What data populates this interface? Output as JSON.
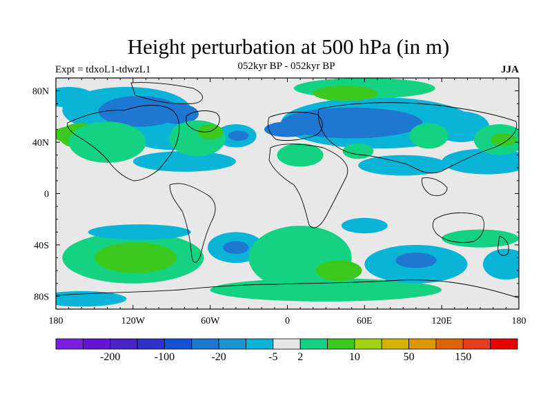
{
  "title": "Height perturbation at 500 hPa (in m)",
  "subtitle_left": "Expt = tdxoL1-tdwzL1",
  "subtitle_center": "052kyr BP - 052kyr BP",
  "subtitle_right": "JJA",
  "colors": {
    "background": "#e8e8e8",
    "frame": "#000000",
    "coast": "#000000"
  },
  "chart_data": {
    "type": "heatmap",
    "title": "Height perturbation at 500 hPa (in m)",
    "x_range": [
      -180,
      180
    ],
    "y_range": [
      -90,
      90
    ],
    "x_ticks": [
      {
        "value": -180,
        "label": "180"
      },
      {
        "value": -120,
        "label": "120W"
      },
      {
        "value": -60,
        "label": "60W"
      },
      {
        "value": 0,
        "label": "0"
      },
      {
        "value": 60,
        "label": "60E"
      },
      {
        "value": 120,
        "label": "120E"
      },
      {
        "value": 180,
        "label": "180"
      }
    ],
    "y_ticks": [
      {
        "value": 80,
        "label": "80N"
      },
      {
        "value": 40,
        "label": "40N"
      },
      {
        "value": 0,
        "label": "0"
      },
      {
        "value": -40,
        "label": "40S"
      },
      {
        "value": -80,
        "label": "80S"
      }
    ],
    "colorbar": {
      "colors": [
        "#7a1ee0",
        "#6414d2",
        "#4a23c8",
        "#2d32cd",
        "#1450d2",
        "#1e78d2",
        "#1996d2",
        "#0ab4d7",
        "#e6e6e6",
        "#14d282",
        "#3cc81e",
        "#a0d214",
        "#d2b400",
        "#dc9600",
        "#dc6400",
        "#e63c1e",
        "#e60000"
      ],
      "label_items": [
        {
          "index": 2,
          "label": "-200"
        },
        {
          "index": 4,
          "label": "-100"
        },
        {
          "index": 6,
          "label": "-20"
        },
        {
          "index": 8,
          "label": "-5"
        },
        {
          "index": 9,
          "label": "2"
        },
        {
          "index": 11,
          "label": "10"
        },
        {
          "index": 13,
          "label": "50"
        },
        {
          "index": 15,
          "label": "150"
        }
      ]
    },
    "field_regions": [
      {
        "level": -5,
        "lon": -125,
        "lat": 65,
        "rlon": 50,
        "rlat": 18
      },
      {
        "level": -20,
        "lon": -115,
        "lat": 64,
        "rlon": 32,
        "rlat": 12
      },
      {
        "level": -20,
        "lon": -85,
        "lat": 62,
        "rlon": 16,
        "rlat": 8
      },
      {
        "level": -5,
        "lon": -90,
        "lat": 44,
        "rlon": 30,
        "rlat": 10
      },
      {
        "level": -5,
        "lon": -40,
        "lat": 45,
        "rlon": 16,
        "rlat": 9
      },
      {
        "level": -20,
        "lon": -38,
        "lat": 45,
        "rlon": 8,
        "rlat": 4
      },
      {
        "level": -5,
        "lon": 70,
        "lat": 55,
        "rlon": 75,
        "rlat": 20
      },
      {
        "level": -20,
        "lon": 50,
        "lat": 55,
        "rlon": 55,
        "rlat": 12
      },
      {
        "level": -20,
        "lon": 0,
        "lat": 50,
        "rlon": 18,
        "rlat": 6
      },
      {
        "level": -5,
        "lon": 135,
        "lat": 52,
        "rlon": 22,
        "rlat": 12
      },
      {
        "level": -5,
        "lon": 155,
        "lat": 25,
        "rlon": 35,
        "rlat": 10
      },
      {
        "level": -5,
        "lon": 90,
        "lat": 22,
        "rlon": 35,
        "rlat": 8
      },
      {
        "level": -5,
        "lon": -170,
        "lat": 75,
        "rlon": 20,
        "rlat": 8
      },
      {
        "level": -5,
        "lon": -80,
        "lat": 25,
        "rlon": 40,
        "rlat": 8
      },
      {
        "level": 10,
        "lon": -160,
        "lat": 45,
        "rlon": 18,
        "rlat": 10
      },
      {
        "level": 10,
        "lon": -170,
        "lat": 46,
        "rlon": 12,
        "rlat": 6
      },
      {
        "level": 2,
        "lon": -140,
        "lat": 40,
        "rlon": 30,
        "rlat": 16
      },
      {
        "level": 2,
        "lon": -70,
        "lat": 43,
        "rlon": 22,
        "rlat": 14
      },
      {
        "level": 10,
        "lon": -60,
        "lat": 48,
        "rlon": 10,
        "rlat": 6
      },
      {
        "level": 2,
        "lon": 10,
        "lat": 30,
        "rlon": 18,
        "rlat": 9
      },
      {
        "level": 2,
        "lon": 55,
        "lat": 33,
        "rlon": 12,
        "rlat": 6
      },
      {
        "level": 2,
        "lon": 60,
        "lat": 82,
        "rlon": 55,
        "rlat": 8
      },
      {
        "level": 10,
        "lon": 45,
        "lat": 78,
        "rlon": 25,
        "rlat": 6
      },
      {
        "level": 2,
        "lon": 110,
        "lat": 45,
        "rlon": 15,
        "rlat": 10
      },
      {
        "level": 2,
        "lon": 165,
        "lat": 42,
        "rlon": 20,
        "rlat": 12
      },
      {
        "level": 10,
        "lon": 168,
        "lat": 42,
        "rlon": 10,
        "rlat": 5
      },
      {
        "level": 2,
        "lon": -120,
        "lat": -50,
        "rlon": 55,
        "rlat": 20
      },
      {
        "level": 10,
        "lon": -118,
        "lat": -50,
        "rlon": 32,
        "rlat": 12
      },
      {
        "level": -5,
        "lon": -115,
        "lat": -30,
        "rlon": 40,
        "rlat": 6
      },
      {
        "level": -5,
        "lon": -40,
        "lat": -42,
        "rlon": 22,
        "rlat": 12
      },
      {
        "level": -20,
        "lon": -40,
        "lat": -42,
        "rlon": 10,
        "rlat": 5
      },
      {
        "level": 2,
        "lon": 10,
        "lat": -50,
        "rlon": 40,
        "rlat": 25
      },
      {
        "level": 2,
        "lon": 30,
        "lat": -75,
        "rlon": 90,
        "rlat": 9
      },
      {
        "level": 10,
        "lon": 40,
        "lat": -60,
        "rlon": 18,
        "rlat": 8
      },
      {
        "level": -5,
        "lon": 100,
        "lat": -55,
        "rlon": 40,
        "rlat": 15
      },
      {
        "level": -20,
        "lon": 100,
        "lat": -52,
        "rlon": 16,
        "rlat": 6
      },
      {
        "level": -5,
        "lon": 60,
        "lat": -25,
        "rlon": 18,
        "rlat": 6
      },
      {
        "level": -5,
        "lon": 170,
        "lat": -55,
        "rlon": 18,
        "rlat": 12
      },
      {
        "level": 2,
        "lon": 150,
        "lat": -35,
        "rlon": 30,
        "rlat": 7
      },
      {
        "level": -5,
        "lon": -160,
        "lat": -82,
        "rlon": 35,
        "rlat": 6
      }
    ]
  }
}
